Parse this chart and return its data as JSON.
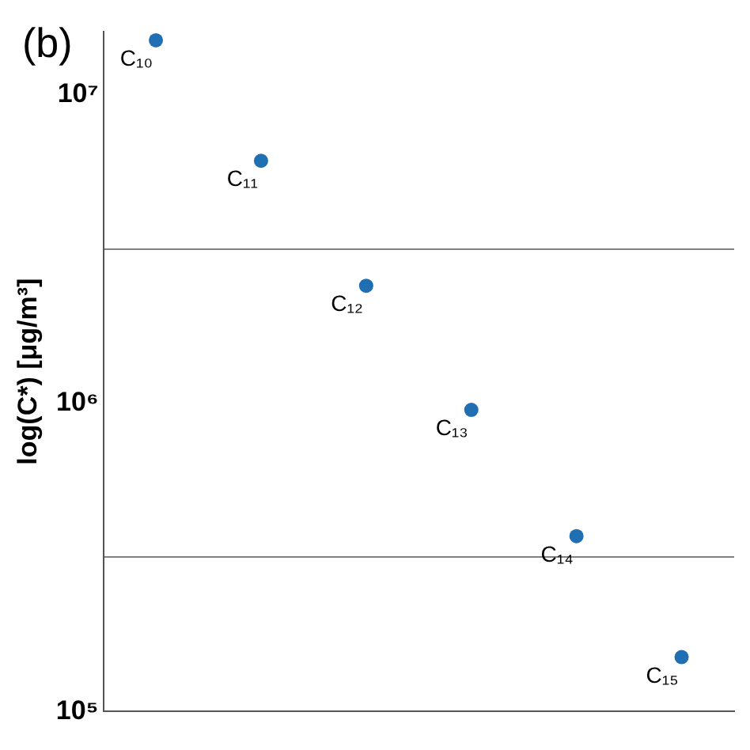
{
  "chart_data": {
    "type": "scatter",
    "ylabel": "log(C*) [μg/m³]",
    "categories": [
      null,
      null,
      null,
      null,
      null,
      null
    ],
    "series": [
      {
        "color": "#1f6fb2",
        "values": [
          15000000,
          6100000,
          2400000,
          950000,
          370000,
          150000
        ],
        "value_labels": [
          "C₁₀",
          "C₁₁",
          "C₁₂",
          "C₁₃",
          "C₁₄",
          "C₁₅"
        ]
      }
    ],
    "ylim": [
      100000,
      16000000
    ],
    "log": "y",
    "yticks": [
      {
        "value": 100000,
        "label": "10⁵"
      },
      {
        "value": 316000,
        "label": null
      },
      {
        "value": 1000000,
        "label": "10⁶"
      },
      {
        "value": 3160000,
        "label": null
      },
      {
        "value": 10000000,
        "label": "10⁷"
      }
    ],
    "grid": "y",
    "legend": false,
    "marker": "circle",
    "annotations": [
      "(b)"
    ]
  }
}
